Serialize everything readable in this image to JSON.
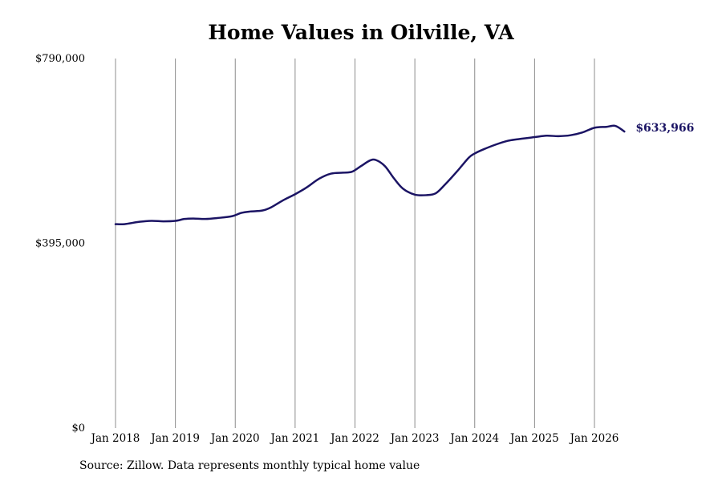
{
  "chart_data": {
    "type": "line",
    "title": "Home Values in Oilville, VA",
    "source_note": "Source: Zillow. Data represents monthly typical home value",
    "ylim": [
      0,
      790000
    ],
    "y_ticks": [
      {
        "value": 0,
        "label": "$0"
      },
      {
        "value": 395000,
        "label": "$395,000"
      },
      {
        "value": 790000,
        "label": "$790,000"
      }
    ],
    "x_ticks": [
      {
        "value": 2018.0,
        "label": "Jan 2018"
      },
      {
        "value": 2019.0,
        "label": "Jan 2019"
      },
      {
        "value": 2020.0,
        "label": "Jan 2020"
      },
      {
        "value": 2021.0,
        "label": "Jan 2021"
      },
      {
        "value": 2022.0,
        "label": "Jan 2022"
      },
      {
        "value": 2023.0,
        "label": "Jan 2023"
      },
      {
        "value": 2024.0,
        "label": "Jan 2024"
      },
      {
        "value": 2025.0,
        "label": "Jan 2025"
      },
      {
        "value": 2026.0,
        "label": "Jan 2026"
      }
    ],
    "xlim": [
      2018.0,
      2026.5
    ],
    "grid": "vertical",
    "line_color": "#1b1464",
    "end_label": "$633,966",
    "series": [
      {
        "x": [
          2018.0,
          2018.15,
          2018.4,
          2018.6,
          2018.8,
          2019.0,
          2019.15,
          2019.3,
          2019.5,
          2019.7,
          2019.95,
          2020.1,
          2020.25,
          2020.45,
          2020.6,
          2020.8,
          2021.0,
          2021.2,
          2021.4,
          2021.6,
          2021.8,
          2021.95,
          2022.1,
          2022.25,
          2022.35,
          2022.5,
          2022.65,
          2022.8,
          2023.0,
          2023.2,
          2023.35,
          2023.5,
          2023.7,
          2023.9,
          2024.0,
          2024.15,
          2024.35,
          2024.55,
          2024.75,
          2025.0,
          2025.2,
          2025.4,
          2025.6,
          2025.8,
          2026.0,
          2026.2,
          2026.35,
          2026.5
        ],
        "y": [
          436000,
          436000,
          441000,
          443000,
          442000,
          443000,
          447000,
          448000,
          447000,
          449000,
          453000,
          460000,
          463000,
          465000,
          472000,
          487000,
          500000,
          515000,
          533000,
          544000,
          546000,
          548000,
          560000,
          572000,
          573000,
          560000,
          534000,
          512000,
          499000,
          498000,
          502000,
          520000,
          548000,
          578000,
          587000,
          596000,
          606000,
          614000,
          618000,
          622000,
          625000,
          624000,
          626000,
          632000,
          642000,
          644000,
          646000,
          633966
        ]
      }
    ]
  }
}
